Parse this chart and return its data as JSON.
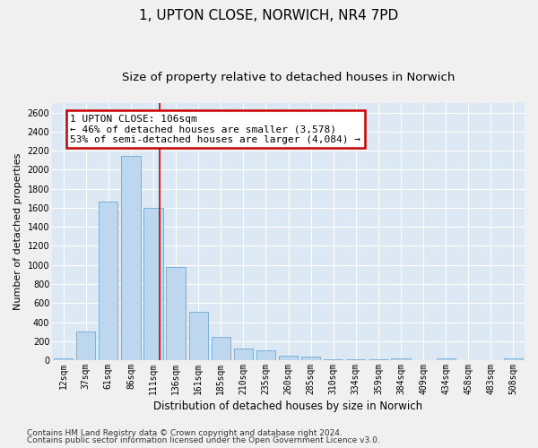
{
  "title_line1": "1, UPTON CLOSE, NORWICH, NR4 7PD",
  "title_line2": "Size of property relative to detached houses in Norwich",
  "xlabel": "Distribution of detached houses by size in Norwich",
  "ylabel": "Number of detached properties",
  "bar_color": "#bdd7ee",
  "bar_edge_color": "#70a8d4",
  "bg_color": "#dce9f5",
  "fig_bg_color": "#f0f0f0",
  "grid_color": "#ffffff",
  "vline_color": "#cc0000",
  "ann_border_color": "#cc0000",
  "ann_bg_color": "#ffffff",
  "categories": [
    "12sqm",
    "37sqm",
    "61sqm",
    "86sqm",
    "111sqm",
    "136sqm",
    "161sqm",
    "185sqm",
    "210sqm",
    "235sqm",
    "260sqm",
    "285sqm",
    "310sqm",
    "334sqm",
    "359sqm",
    "384sqm",
    "409sqm",
    "434sqm",
    "458sqm",
    "483sqm",
    "508sqm"
  ],
  "values": [
    18,
    300,
    1668,
    2145,
    1595,
    975,
    508,
    248,
    118,
    100,
    48,
    35,
    6,
    14,
    5,
    18,
    4,
    18,
    4,
    4,
    18
  ],
  "ylim": [
    0,
    2700
  ],
  "yticks": [
    0,
    200,
    400,
    600,
    800,
    1000,
    1200,
    1400,
    1600,
    1800,
    2000,
    2200,
    2400,
    2600
  ],
  "vline_pos": 4.28,
  "ann_line1": "1 UPTON CLOSE: 106sqm",
  "ann_line2": "← 46% of detached houses are smaller (3,578)",
  "ann_line3": "53% of semi-detached houses are larger (4,084) →",
  "footer1": "Contains HM Land Registry data © Crown copyright and database right 2024.",
  "footer2": "Contains public sector information licensed under the Open Government Licence v3.0.",
  "title_fontsize": 11,
  "subtitle_fontsize": 9.5,
  "ylabel_fontsize": 8,
  "xlabel_fontsize": 8.5,
  "tick_fontsize": 7,
  "ann_fontsize": 8,
  "footer_fontsize": 6.5
}
